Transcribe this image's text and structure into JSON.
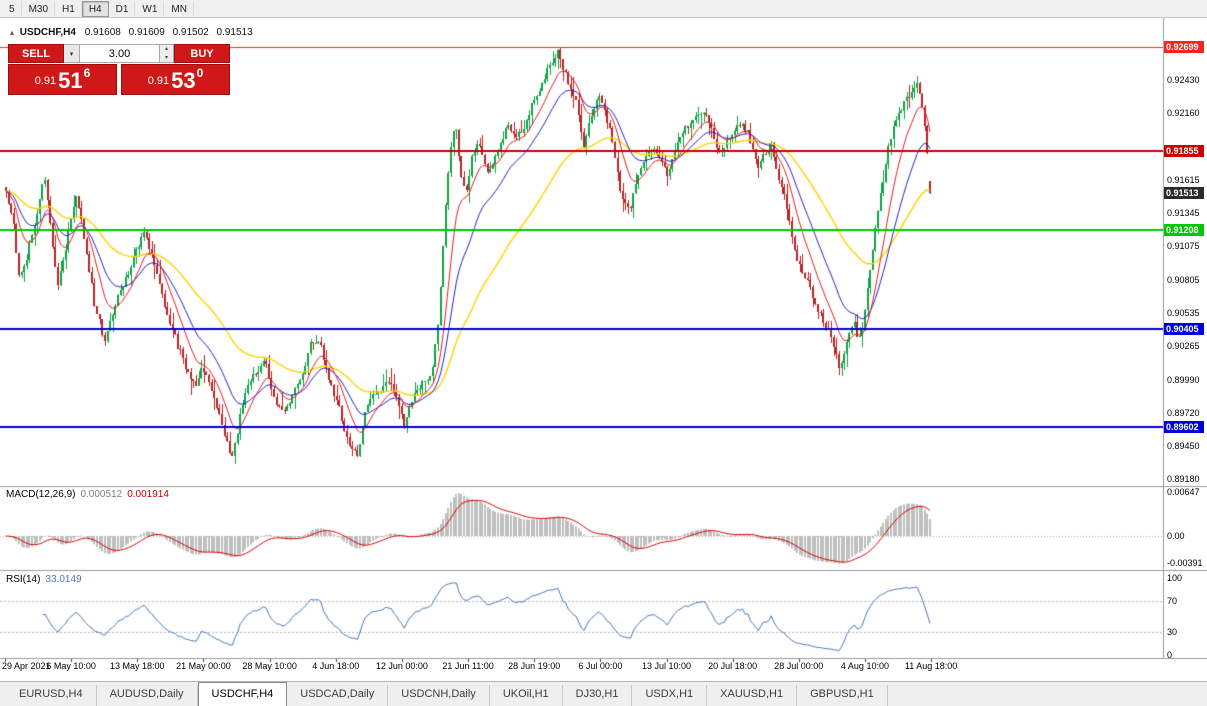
{
  "icons": {
    "collapse": "▴",
    "caret_down": "▾",
    "spin_up": "▴",
    "spin_down": "▾"
  },
  "toolbar": {
    "timeframes": [
      "5",
      "M30",
      "H1",
      "H4",
      "D1",
      "W1",
      "MN"
    ],
    "active": "H4"
  },
  "chart_header": {
    "symbol_period": "USDCHF,H4",
    "open": "0.91608",
    "high": "0.91609",
    "low": "0.91502",
    "close": "0.91513"
  },
  "one_click": {
    "sell_label": "SELL",
    "buy_label": "BUY",
    "volume": "3.00",
    "bid": {
      "prefix": "0.91",
      "big": "51",
      "sup": "6"
    },
    "ask": {
      "prefix": "0.91",
      "big": "53",
      "sup": "0"
    }
  },
  "price_axis": {
    "ticks": [
      "0.92430",
      "0.92160",
      "0.91615",
      "0.91345",
      "0.91075",
      "0.90805",
      "0.90535",
      "0.90265",
      "0.89990",
      "0.89720",
      "0.89450",
      "0.89180"
    ],
    "chips": [
      {
        "text": "0.92699",
        "color": "#ff2222"
      },
      {
        "text": "0.91855",
        "color": "#cc0000"
      },
      {
        "text": "0.91513",
        "color": "#2b2b2b"
      },
      {
        "text": "0.91208",
        "color": "#00c800"
      },
      {
        "text": "0.90405",
        "color": "#0000dd"
      },
      {
        "text": "0.89602",
        "color": "#0000dd"
      }
    ]
  },
  "hlines": [
    {
      "price": 0.92699,
      "color": "#ff2222",
      "width": 1
    },
    {
      "price": 0.91855,
      "color": "#cc0000",
      "width": 2
    },
    {
      "price": 0.91208,
      "color": "#00c800",
      "width": 2
    },
    {
      "price": 0.90405,
      "color": "#0000dd",
      "width": 2
    },
    {
      "price": 0.89602,
      "color": "#0000dd",
      "width": 2
    }
  ],
  "macd_panel": {
    "label": "MACD(12,26,9)",
    "value_main": "0.000512",
    "value_signal": "0.001914",
    "axis_labels": [
      {
        "text": "0.00647",
        "value": 0.00647
      },
      {
        "text": "0.00",
        "value": 0
      },
      {
        "text": "-0.00391",
        "value": -0.00391
      }
    ]
  },
  "rsi_panel": {
    "label": "RSI(14)",
    "value": "33.0149",
    "axis_labels": [
      {
        "text": "100",
        "value": 100
      },
      {
        "text": "70",
        "value": 70
      },
      {
        "text": "30",
        "value": 30
      },
      {
        "text": "0",
        "value": 0
      }
    ],
    "levels": [
      70,
      30
    ]
  },
  "time_axis": [
    "29 Apr 2021",
    "6 May 10:00",
    "13 May 18:00",
    "21 May 00:00",
    "28 May 10:00",
    "4 Jun 18:00",
    "12 Jun 00:00",
    "21 Jun 11:00",
    "28 Jun 19:00",
    "6 Jul 00:00",
    "13 Jul 10:00",
    "20 Jul 18:00",
    "28 Jul 00:00",
    "4 Aug 10:00",
    "11 Aug 18:00"
  ],
  "tabs": [
    "EURUSD,H4",
    "AUDUSD,Daily",
    "USDCHF,H4",
    "USDCAD,Daily",
    "USDCNH,Daily",
    "UKOil,H1",
    "DJ30,H1",
    "USDX,H1",
    "XAUUSD,H1",
    "GBPUSD,H1"
  ],
  "active_tab": "USDCHF,H4",
  "chart_data": {
    "type": "candlestick",
    "symbol": "USDCHF",
    "timeframe": "H4",
    "price_range": {
      "axis_top": 0.92699,
      "axis_bottom": 0.8918
    },
    "num_candles": 356,
    "last_candle": {
      "open": 0.91608,
      "high": 0.91609,
      "low": 0.91502,
      "close": 0.91513
    },
    "colors": {
      "up": "#12a045",
      "down": "#b52525",
      "macd_hist": "#bfbfbf",
      "macd_signal": "#e00000",
      "rsi": "#4878b8"
    },
    "moving_averages": [
      {
        "period": 55,
        "color": "#ffd200",
        "width": 1.4
      },
      {
        "period": 21,
        "color": "#2222cc",
        "width": 1
      },
      {
        "period": 10,
        "color": "#e81c1c",
        "width": 1
      }
    ],
    "macd": {
      "fast": 12,
      "slow": 26,
      "signal": 9,
      "display_max": 0.0063
    },
    "rsi": {
      "period": 14
    },
    "anchors": [
      [
        0.0,
        0.915
      ],
      [
        0.008,
        0.9128
      ],
      [
        0.015,
        0.9078
      ],
      [
        0.03,
        0.912
      ],
      [
        0.042,
        0.9166
      ],
      [
        0.05,
        0.911
      ],
      [
        0.056,
        0.9072
      ],
      [
        0.068,
        0.912
      ],
      [
        0.075,
        0.915
      ],
      [
        0.085,
        0.9115
      ],
      [
        0.096,
        0.906
      ],
      [
        0.107,
        0.903
      ],
      [
        0.12,
        0.9065
      ],
      [
        0.134,
        0.909
      ],
      [
        0.15,
        0.9122
      ],
      [
        0.16,
        0.9095
      ],
      [
        0.172,
        0.906
      ],
      [
        0.188,
        0.9022
      ],
      [
        0.204,
        0.8992
      ],
      [
        0.212,
        0.9012
      ],
      [
        0.22,
        0.8996
      ],
      [
        0.236,
        0.8958
      ],
      [
        0.245,
        0.8934
      ],
      [
        0.252,
        0.8962
      ],
      [
        0.258,
        0.8985
      ],
      [
        0.27,
        0.9005
      ],
      [
        0.28,
        0.9014
      ],
      [
        0.29,
        0.8985
      ],
      [
        0.301,
        0.8972
      ],
      [
        0.31,
        0.8988
      ],
      [
        0.317,
        0.8996
      ],
      [
        0.33,
        0.9028
      ],
      [
        0.34,
        0.9029
      ],
      [
        0.348,
        0.9
      ],
      [
        0.356,
        0.8986
      ],
      [
        0.368,
        0.8955
      ],
      [
        0.38,
        0.8934
      ],
      [
        0.39,
        0.8975
      ],
      [
        0.4,
        0.899
      ],
      [
        0.415,
        0.8996
      ],
      [
        0.424,
        0.898
      ],
      [
        0.431,
        0.8962
      ],
      [
        0.44,
        0.8985
      ],
      [
        0.452,
        0.8996
      ],
      [
        0.461,
        0.9003
      ],
      [
        0.468,
        0.9045
      ],
      [
        0.474,
        0.912
      ],
      [
        0.48,
        0.918
      ],
      [
        0.486,
        0.9212
      ],
      [
        0.492,
        0.9165
      ],
      [
        0.498,
        0.9152
      ],
      [
        0.505,
        0.9185
      ],
      [
        0.512,
        0.9192
      ],
      [
        0.52,
        0.917
      ],
      [
        0.528,
        0.9174
      ],
      [
        0.536,
        0.9195
      ],
      [
        0.544,
        0.9208
      ],
      [
        0.552,
        0.9196
      ],
      [
        0.561,
        0.9202
      ],
      [
        0.57,
        0.9225
      ],
      [
        0.58,
        0.924
      ],
      [
        0.59,
        0.9256
      ],
      [
        0.598,
        0.9266
      ],
      [
        0.605,
        0.9248
      ],
      [
        0.612,
        0.9234
      ],
      [
        0.618,
        0.9222
      ],
      [
        0.625,
        0.919
      ],
      [
        0.633,
        0.9212
      ],
      [
        0.641,
        0.9232
      ],
      [
        0.648,
        0.922
      ],
      [
        0.655,
        0.9198
      ],
      [
        0.663,
        0.916
      ],
      [
        0.671,
        0.914
      ],
      [
        0.676,
        0.9138
      ],
      [
        0.682,
        0.9158
      ],
      [
        0.688,
        0.917
      ],
      [
        0.695,
        0.9182
      ],
      [
        0.702,
        0.919
      ],
      [
        0.709,
        0.9176
      ],
      [
        0.716,
        0.9166
      ],
      [
        0.723,
        0.9186
      ],
      [
        0.73,
        0.9198
      ],
      [
        0.738,
        0.9206
      ],
      [
        0.746,
        0.9212
      ],
      [
        0.753,
        0.9218
      ],
      [
        0.76,
        0.9212
      ],
      [
        0.768,
        0.9192
      ],
      [
        0.774,
        0.9182
      ],
      [
        0.781,
        0.9196
      ],
      [
        0.788,
        0.9201
      ],
      [
        0.795,
        0.9206
      ],
      [
        0.802,
        0.9202
      ],
      [
        0.809,
        0.9186
      ],
      [
        0.815,
        0.9172
      ],
      [
        0.821,
        0.9183
      ],
      [
        0.828,
        0.919
      ],
      [
        0.835,
        0.9168
      ],
      [
        0.842,
        0.915
      ],
      [
        0.849,
        0.912
      ],
      [
        0.855,
        0.91
      ],
      [
        0.862,
        0.9086
      ],
      [
        0.869,
        0.9077
      ],
      [
        0.876,
        0.9062
      ],
      [
        0.882,
        0.9051
      ],
      [
        0.889,
        0.904
      ],
      [
        0.896,
        0.9028
      ],
      [
        0.901,
        0.9009
      ],
      [
        0.907,
        0.9021
      ],
      [
        0.912,
        0.9039
      ],
      [
        0.918,
        0.9046
      ],
      [
        0.922,
        0.9032
      ],
      [
        0.926,
        0.9038
      ],
      [
        0.931,
        0.9064
      ],
      [
        0.935,
        0.9086
      ],
      [
        0.94,
        0.912
      ],
      [
        0.945,
        0.9144
      ],
      [
        0.951,
        0.917
      ],
      [
        0.956,
        0.9192
      ],
      [
        0.961,
        0.9206
      ],
      [
        0.966,
        0.9216
      ],
      [
        0.971,
        0.9223
      ],
      [
        0.977,
        0.9229
      ],
      [
        0.982,
        0.9239
      ],
      [
        0.986,
        0.9242
      ],
      [
        0.99,
        0.9228
      ],
      [
        0.993,
        0.9218
      ],
      [
        0.996,
        0.9196
      ],
      [
        0.998,
        0.9172
      ],
      [
        1.0,
        0.91513
      ]
    ]
  }
}
